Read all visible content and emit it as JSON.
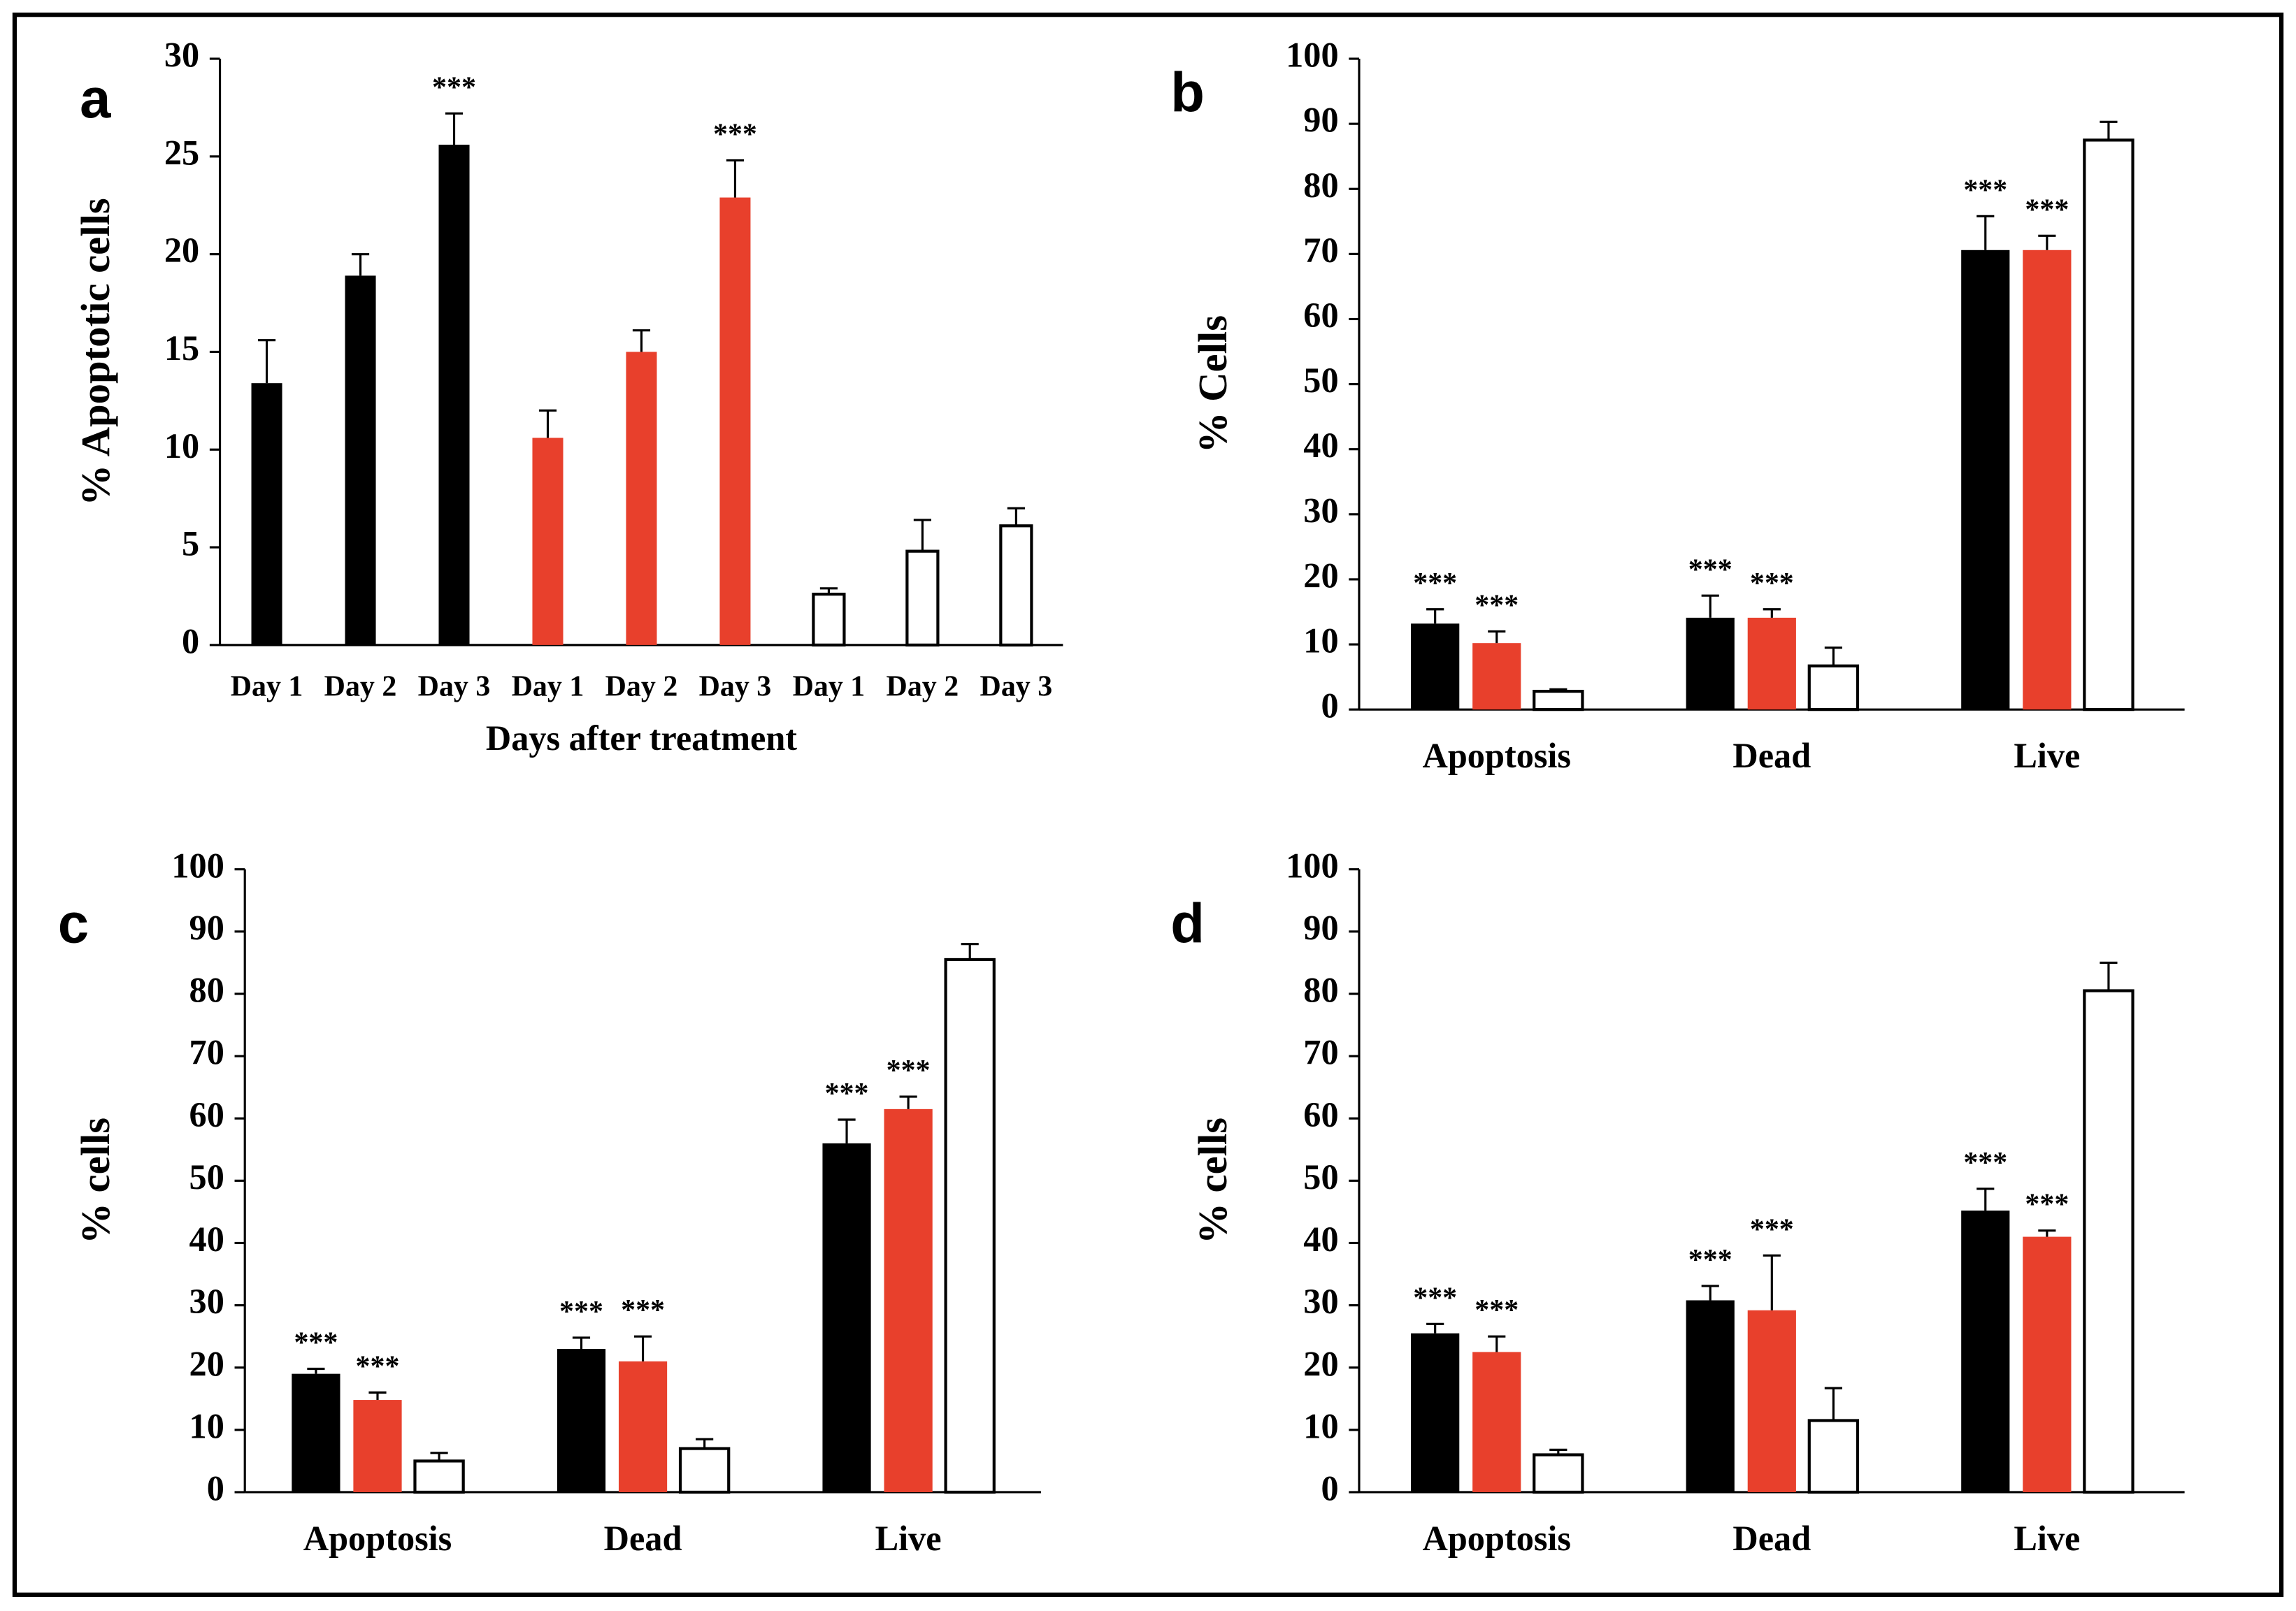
{
  "chart_data": [
    {
      "type": "bar",
      "panel_label": "a",
      "ylabel": "% Apoptotic cells",
      "xlabel": "Days after treatment",
      "categories": [
        "Day 1",
        "Day 2",
        "Day 3",
        "Day 1",
        "Day 2",
        "Day 3",
        "Day 1",
        "Day 2",
        "Day 3"
      ],
      "values": [
        13.4,
        18.9,
        25.6,
        10.6,
        15.0,
        22.9,
        2.6,
        4.8,
        6.1
      ],
      "errors": [
        2.2,
        1.1,
        1.6,
        1.4,
        1.1,
        1.9,
        0.3,
        1.6,
        0.9
      ],
      "colors": [
        "#000000",
        "#000000",
        "#000000",
        "#e8402c",
        "#e8402c",
        "#e8402c",
        "#ffffff",
        "#ffffff",
        "#ffffff"
      ],
      "annotations": [
        null,
        null,
        "***",
        null,
        null,
        "***",
        null,
        null,
        null
      ],
      "ylim": [
        0,
        30
      ],
      "yticks": [
        0,
        5,
        10,
        15,
        20,
        25,
        30
      ]
    },
    {
      "type": "bar",
      "panel_label": "b",
      "ylabel": "% Cells",
      "categories": [
        "Apoptosis",
        "Dead",
        "Live"
      ],
      "series": [
        {
          "color": "#000000",
          "values": [
            13.2,
            14.1,
            70.6
          ],
          "errors": [
            2.2,
            3.4,
            5.2
          ],
          "annotations": [
            "***",
            "***",
            "***"
          ]
        },
        {
          "color": "#e8402c",
          "values": [
            10.2,
            14.1,
            70.6
          ],
          "errors": [
            1.8,
            1.3,
            2.2
          ],
          "annotations": [
            "***",
            "***",
            "***"
          ]
        },
        {
          "color": "#ffffff",
          "values": [
            2.8,
            6.7,
            87.5
          ],
          "errors": [
            0.3,
            2.8,
            2.8
          ],
          "annotations": [
            null,
            null,
            null
          ]
        }
      ],
      "ylim": [
        0,
        100
      ],
      "yticks": [
        0,
        10,
        20,
        30,
        40,
        50,
        60,
        70,
        80,
        90,
        100
      ]
    },
    {
      "type": "bar",
      "panel_label": "c",
      "ylabel": "% cells",
      "categories": [
        "Apoptosis",
        "Dead",
        "Live"
      ],
      "series": [
        {
          "color": "#000000",
          "values": [
            19,
            23,
            56
          ],
          "errors": [
            0.8,
            1.8,
            3.8
          ],
          "annotations": [
            "***",
            "***",
            "***"
          ]
        },
        {
          "color": "#e8402c",
          "values": [
            14.8,
            21,
            61.5
          ],
          "errors": [
            1.2,
            4,
            2
          ],
          "annotations": [
            "***",
            "***",
            "***"
          ]
        },
        {
          "color": "#ffffff",
          "values": [
            5,
            7,
            85.5
          ],
          "errors": [
            1.3,
            1.5,
            2.5
          ],
          "annotations": [
            null,
            null,
            null
          ]
        }
      ],
      "ylim": [
        0,
        100
      ],
      "yticks": [
        0,
        10,
        20,
        30,
        40,
        50,
        60,
        70,
        80,
        90,
        100
      ]
    },
    {
      "type": "bar",
      "panel_label": "d",
      "ylabel": "% cells",
      "categories": [
        "Apoptosis",
        "Dead",
        "Live"
      ],
      "series": [
        {
          "color": "#000000",
          "values": [
            25.5,
            30.8,
            45.2
          ],
          "errors": [
            1.5,
            2.3,
            3.5
          ],
          "annotations": [
            "***",
            "***",
            "***"
          ]
        },
        {
          "color": "#e8402c",
          "values": [
            22.5,
            29.2,
            41
          ],
          "errors": [
            2.5,
            8.8,
            1
          ],
          "annotations": [
            "***",
            "***",
            "***"
          ]
        },
        {
          "color": "#ffffff",
          "values": [
            6,
            11.5,
            80.5
          ],
          "errors": [
            0.8,
            5.2,
            4.5
          ],
          "annotations": [
            null,
            null,
            null
          ]
        }
      ],
      "ylim": [
        0,
        100
      ],
      "yticks": [
        0,
        10,
        20,
        30,
        40,
        50,
        60,
        70,
        80,
        90,
        100
      ]
    }
  ]
}
